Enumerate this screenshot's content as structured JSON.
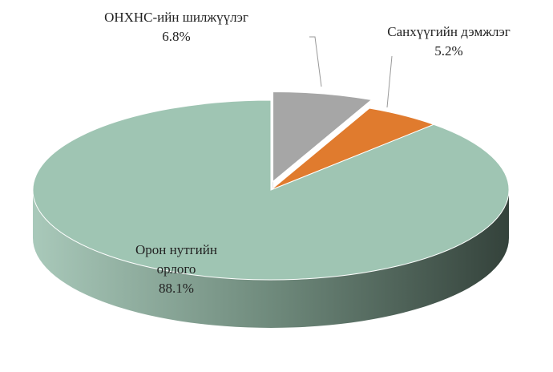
{
  "chart_data": {
    "type": "pie",
    "categories": [
      "ОНХНС-ийн шилжүүлэг",
      "Санхүүгийн дэмжлэг",
      "Орон нутгийн орлого"
    ],
    "values": [
      6.8,
      5.2,
      88.1
    ],
    "value_labels": [
      "6.8%",
      "5.2%",
      "88.1%"
    ],
    "colors": [
      "#a6a6a6",
      "#e07b2e",
      "#9fc5b3"
    ],
    "explode": [
      true,
      false,
      false
    ]
  }
}
